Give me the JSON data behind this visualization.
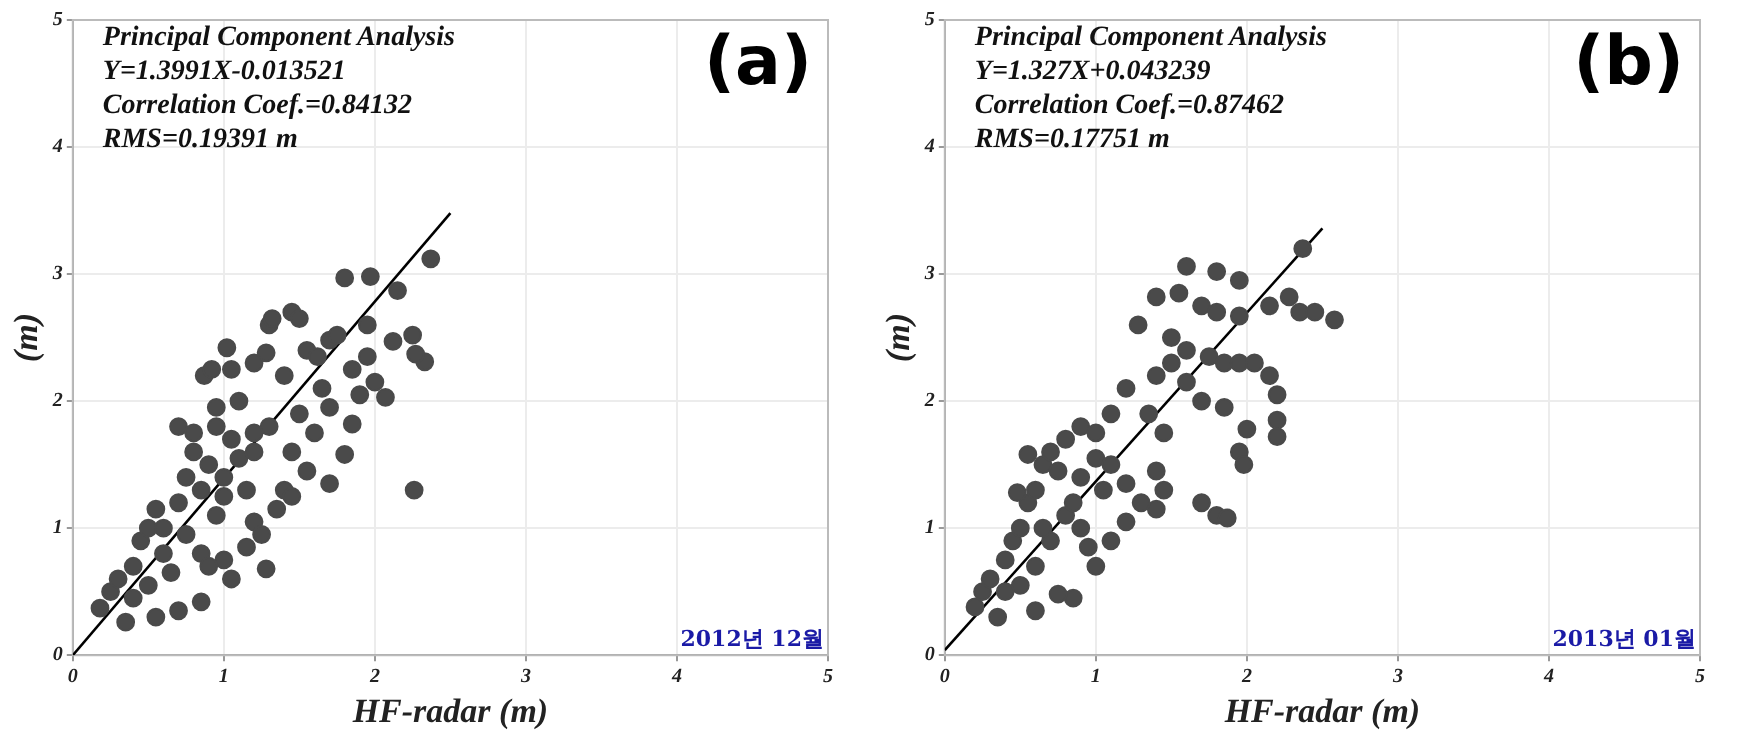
{
  "chart_data": [
    {
      "type": "scatter",
      "title": "(a)",
      "xlabel": "HF-radar (m)",
      "ylabel": "(m)",
      "xlim": [
        0,
        5
      ],
      "ylim": [
        0,
        5
      ],
      "xticks": [
        0,
        1,
        2,
        3,
        4,
        5
      ],
      "yticks": [
        0,
        1,
        2,
        3,
        4,
        5
      ],
      "grid": true,
      "legend": false,
      "marker": "circle",
      "annotations": [
        "Principal Component Analysis",
        "Y=1.3991X-0.013521",
        "Correlation Coef.=0.84132",
        "RMS=0.19391 m",
        "2012년 12월"
      ],
      "series": [
        {
          "color": "#4a4a4a",
          "x": [
            1.8,
            1.97,
            2.15,
            2.37,
            2.25,
            2.33,
            2.27,
            2.12,
            2.07,
            2.26,
            1.7,
            1.8,
            1.85,
            1.95,
            1.45,
            1.5,
            1.3,
            1.32,
            1.02,
            0.87,
            0.92,
            1.05,
            1.2,
            1.28,
            1.55,
            1.62,
            1.7,
            1.75,
            1.85,
            1.95,
            2.0,
            1.9,
            1.65,
            1.4,
            1.1,
            0.95,
            0.7,
            0.8,
            1.3,
            1.5,
            1.7,
            1.6,
            1.45,
            1.55,
            1.4,
            1.45,
            1.35,
            1.2,
            1.25,
            1.15,
            1.28,
            1.05,
            1.0,
            0.85,
            0.7,
            0.55,
            0.35,
            0.18,
            0.25,
            0.3,
            0.4,
            0.45,
            0.5,
            0.55,
            0.6,
            0.7,
            0.75,
            0.8,
            0.85,
            0.9,
            0.95,
            1.0,
            1.05,
            1.1,
            1.15,
            1.2,
            0.65,
            0.75,
            0.85,
            0.9,
            0.4,
            0.5,
            1.0,
            0.95,
            1.2,
            0.6
          ],
          "values": [
            2.97,
            2.98,
            2.87,
            3.12,
            2.52,
            2.31,
            2.37,
            2.47,
            2.03,
            1.3,
            1.35,
            1.58,
            1.82,
            2.6,
            2.7,
            2.65,
            2.6,
            2.65,
            2.42,
            2.2,
            2.25,
            2.25,
            2.3,
            2.38,
            2.4,
            2.35,
            2.48,
            2.52,
            2.25,
            2.35,
            2.15,
            2.05,
            2.1,
            2.2,
            2.0,
            1.95,
            1.8,
            1.75,
            1.8,
            1.9,
            1.95,
            1.75,
            1.6,
            1.45,
            1.3,
            1.25,
            1.15,
            1.05,
            0.95,
            0.85,
            0.68,
            0.6,
            0.75,
            0.42,
            0.35,
            0.3,
            0.26,
            0.37,
            0.5,
            0.6,
            0.7,
            0.9,
            1.0,
            1.15,
            0.8,
            1.2,
            1.4,
            1.6,
            1.3,
            1.5,
            1.1,
            1.4,
            1.7,
            1.55,
            1.3,
            1.6,
            0.65,
            0.95,
            0.8,
            0.7,
            0.45,
            0.55,
            1.25,
            1.8,
            1.75,
            1.0
          ]
        },
        {
          "type": "line",
          "marker": "none",
          "color": "#000000",
          "x": [
            0,
            2.5
          ],
          "values": [
            0,
            3.48
          ]
        }
      ]
    },
    {
      "type": "scatter",
      "title": "(b)",
      "xlabel": "HF-radar (m)",
      "ylabel": "(m)",
      "xlim": [
        0,
        5
      ],
      "ylim": [
        0,
        5
      ],
      "xticks": [
        0,
        1,
        2,
        3,
        4,
        5
      ],
      "yticks": [
        0,
        1,
        2,
        3,
        4,
        5
      ],
      "grid": true,
      "legend": false,
      "marker": "circle",
      "annotations": [
        "Principal Component Analysis",
        "Y=1.327X+0.043239",
        "Correlation Coef.=0.87462",
        "RMS=0.17751 m",
        "2013년 01월"
      ],
      "series": [
        {
          "color": "#4a4a4a",
          "x": [
            2.37,
            1.6,
            1.8,
            1.95,
            1.4,
            1.55,
            1.7,
            1.8,
            1.95,
            2.15,
            2.28,
            2.35,
            2.45,
            2.58,
            1.28,
            1.5,
            1.6,
            1.75,
            1.85,
            1.95,
            2.05,
            2.15,
            2.2,
            2.2,
            2.2,
            2.0,
            1.95,
            1.98,
            1.85,
            1.7,
            1.6,
            1.5,
            1.4,
            1.2,
            1.1,
            1.35,
            1.45,
            1.4,
            1.45,
            1.4,
            1.3,
            1.2,
            1.1,
            0.95,
            1.0,
            1.7,
            1.8,
            1.87,
            0.85,
            0.75,
            0.6,
            0.35,
            0.2,
            0.25,
            0.3,
            0.4,
            0.45,
            0.5,
            0.55,
            0.6,
            0.65,
            0.7,
            0.75,
            0.8,
            0.9,
            1.0,
            0.9,
            1.0,
            1.05,
            0.8,
            0.7,
            0.6,
            0.55,
            0.48,
            0.65,
            0.85,
            0.5,
            0.4,
            0.9,
            1.1,
            1.2
          ],
          "values": [
            3.2,
            3.06,
            3.02,
            2.95,
            2.82,
            2.85,
            2.75,
            2.7,
            2.67,
            2.75,
            2.82,
            2.7,
            2.7,
            2.64,
            2.6,
            2.5,
            2.4,
            2.35,
            2.3,
            2.3,
            2.3,
            2.2,
            2.05,
            1.85,
            1.72,
            1.78,
            1.6,
            1.5,
            1.95,
            2.0,
            2.15,
            2.3,
            2.2,
            2.1,
            1.9,
            1.9,
            1.75,
            1.45,
            1.3,
            1.15,
            1.2,
            1.05,
            0.9,
            0.85,
            0.7,
            1.2,
            1.1,
            1.08,
            0.45,
            0.48,
            0.35,
            0.3,
            0.38,
            0.5,
            0.6,
            0.75,
            0.9,
            1.0,
            1.2,
            1.3,
            1.5,
            1.6,
            1.45,
            1.7,
            1.8,
            1.75,
            1.4,
            1.55,
            1.3,
            1.1,
            0.9,
            0.7,
            1.58,
            1.28,
            1.0,
            1.2,
            0.55,
            0.5,
            1.0,
            1.5,
            1.35
          ]
        },
        {
          "type": "line",
          "marker": "none",
          "color": "#000000",
          "x": [
            0,
            2.5
          ],
          "values": [
            0.04,
            3.36
          ]
        }
      ]
    }
  ]
}
